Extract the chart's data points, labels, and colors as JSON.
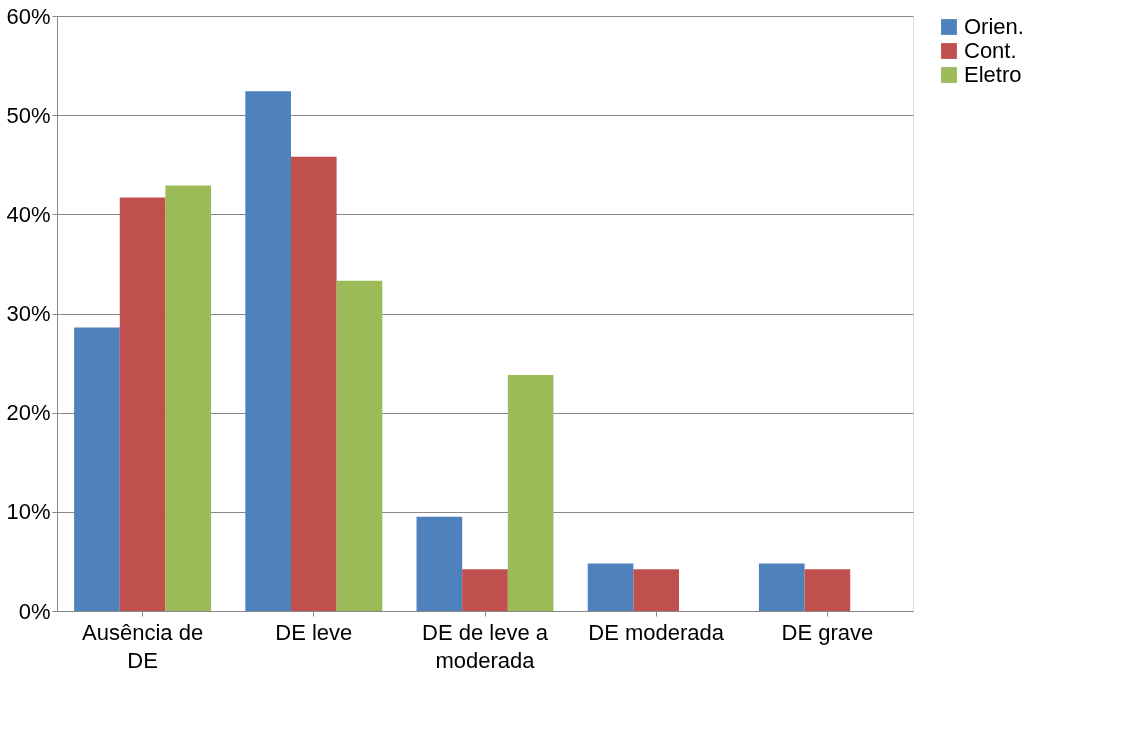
{
  "chart_data": {
    "type": "bar",
    "categories": [
      "Ausência de DE",
      "DE leve",
      "DE de leve a moderada",
      "DE moderada",
      "DE grave"
    ],
    "series": [
      {
        "name": "Orien.",
        "color": "#4f81bd",
        "values": [
          28.6,
          52.4,
          9.5,
          4.8,
          4.8
        ]
      },
      {
        "name": "Cont.",
        "color": "#c0504d",
        "values": [
          41.7,
          45.8,
          4.2,
          4.2,
          4.2
        ]
      },
      {
        "name": "Eletro",
        "color": "#9bbb59",
        "values": [
          42.9,
          33.3,
          23.8,
          0,
          0
        ]
      }
    ],
    "ylim": [
      0,
      60
    ],
    "yticks": [
      {
        "value": 0,
        "label": "0%"
      },
      {
        "value": 10,
        "label": "10%"
      },
      {
        "value": 20,
        "label": "20%"
      },
      {
        "value": 30,
        "label": "30%"
      },
      {
        "value": 40,
        "label": "40%"
      },
      {
        "value": 50,
        "label": "50%"
      },
      {
        "value": 60,
        "label": "60%"
      }
    ],
    "grid": "y",
    "legend": "right"
  }
}
